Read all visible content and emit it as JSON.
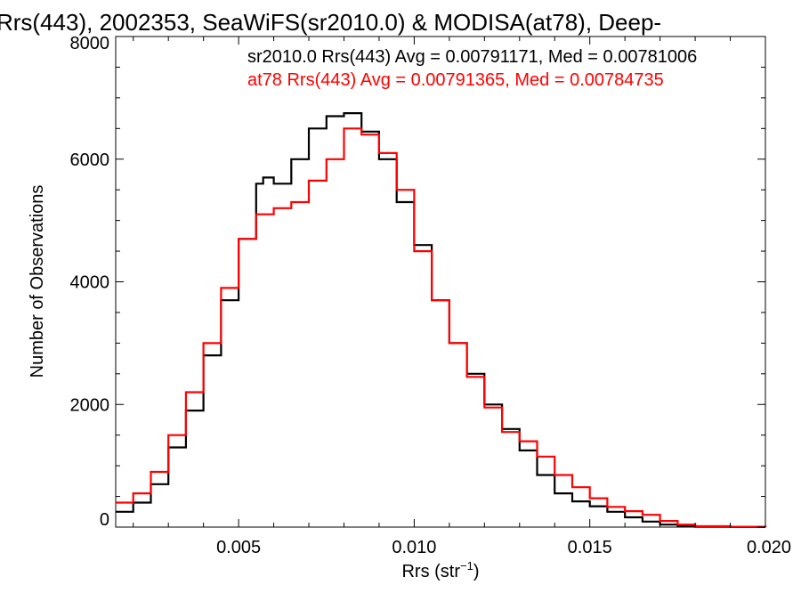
{
  "chart_data": {
    "type": "line",
    "title": "Rrs(443), 2002353, SeaWiFS(sr2010.0) & MODISA(at78), Deep-",
    "xlabel_base": "Rrs (str",
    "xlabel_sup": "−1",
    "xlabel_close": ")",
    "ylabel": "Number of Observations",
    "xlim": [
      0.0015,
      0.02
    ],
    "ylim": [
      0,
      8000
    ],
    "xticks": [
      0.005,
      0.01,
      0.015,
      0.02
    ],
    "xtick_labels": [
      "0.005",
      "0.010",
      "0.015",
      "0.020"
    ],
    "yticks": [
      0,
      2000,
      4000,
      6000,
      8000
    ],
    "ytick_labels": [
      "0",
      "2000",
      "4000",
      "6000",
      "8000"
    ],
    "grid": false,
    "annotations": [
      {
        "text": "sr2010.0 Rrs(443) Avg = 0.00791171, Med = 0.00781006",
        "color": "#000000"
      },
      {
        "text": "at78 Rrs(443) Avg = 0.00791365, Med = 0.00784735",
        "color": "#ff0000"
      }
    ],
    "series": [
      {
        "color": "#000000",
        "x": [
          0.0015,
          0.002,
          0.0025,
          0.003,
          0.0035,
          0.004,
          0.0045,
          0.005,
          0.0055,
          0.0057,
          0.006,
          0.0065,
          0.007,
          0.0075,
          0.008,
          0.0085,
          0.009,
          0.0095,
          0.01,
          0.0105,
          0.011,
          0.0115,
          0.012,
          0.0125,
          0.013,
          0.0135,
          0.014,
          0.0145,
          0.015,
          0.0155,
          0.016,
          0.0165,
          0.017,
          0.0175,
          0.018,
          0.019,
          0.02
        ],
        "values": [
          250,
          400,
          700,
          1300,
          1900,
          2800,
          3700,
          4700,
          5600,
          5700,
          5600,
          6000,
          6500,
          6700,
          6750,
          6450,
          6000,
          5300,
          4600,
          3700,
          3000,
          2500,
          2000,
          1600,
          1250,
          850,
          550,
          420,
          340,
          250,
          160,
          90,
          40,
          15,
          5,
          2,
          0
        ]
      },
      {
        "color": "#ff0000",
        "x": [
          0.0015,
          0.002,
          0.0025,
          0.003,
          0.0035,
          0.004,
          0.0045,
          0.005,
          0.0055,
          0.006,
          0.0065,
          0.007,
          0.0075,
          0.008,
          0.0085,
          0.009,
          0.0095,
          0.01,
          0.0105,
          0.011,
          0.0115,
          0.012,
          0.0125,
          0.013,
          0.0135,
          0.014,
          0.0145,
          0.015,
          0.0155,
          0.016,
          0.0165,
          0.017,
          0.0175,
          0.018,
          0.019,
          0.02
        ],
        "values": [
          400,
          550,
          900,
          1500,
          2200,
          3000,
          3900,
          4700,
          5100,
          5200,
          5300,
          5650,
          6000,
          6500,
          6400,
          6100,
          5500,
          4500,
          3700,
          3000,
          2450,
          1950,
          1550,
          1400,
          1150,
          850,
          650,
          470,
          330,
          260,
          200,
          100,
          40,
          15,
          5,
          0
        ]
      }
    ]
  }
}
